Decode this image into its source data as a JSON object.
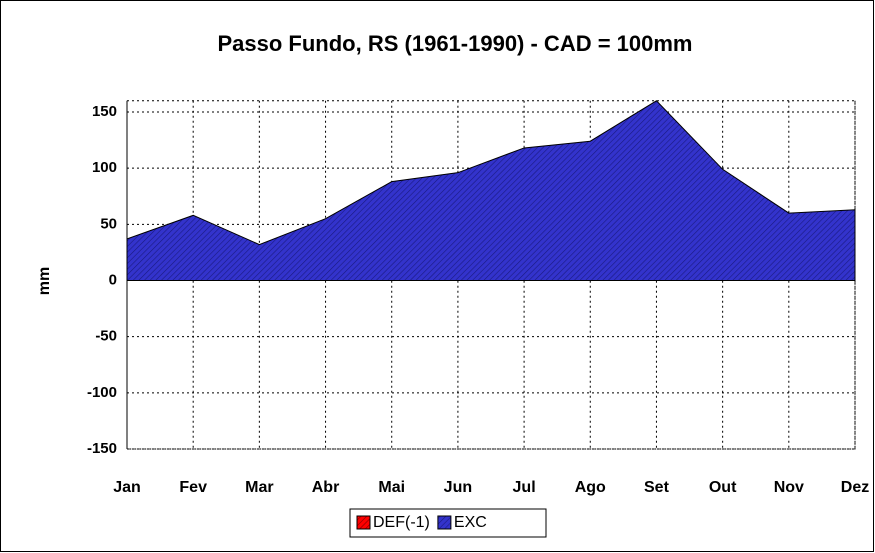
{
  "chart_data": {
    "type": "area",
    "title": "Passo Fundo, RS (1961-1990) - CAD = 100mm",
    "ylabel": "mm",
    "categories": [
      "Jan",
      "Fev",
      "Mar",
      "Abr",
      "Mai",
      "Jun",
      "Jul",
      "Ago",
      "Set",
      "Out",
      "Nov",
      "Dez"
    ],
    "series": [
      {
        "name": "DEF(-1)",
        "color": "#ff0000",
        "values": [
          0,
          0,
          0,
          0,
          0,
          0,
          0,
          0,
          0,
          0,
          0,
          0
        ]
      },
      {
        "name": "EXC",
        "color": "#3333cc",
        "values": [
          37,
          58,
          32,
          55,
          88,
          96,
          118,
          124,
          160,
          99,
          60,
          63
        ]
      }
    ],
    "ylim": [
      -150,
      160
    ],
    "yticks": [
      -150,
      -100,
      -50,
      0,
      50,
      100,
      150
    ],
    "grid": true,
    "legend": "bottom"
  }
}
